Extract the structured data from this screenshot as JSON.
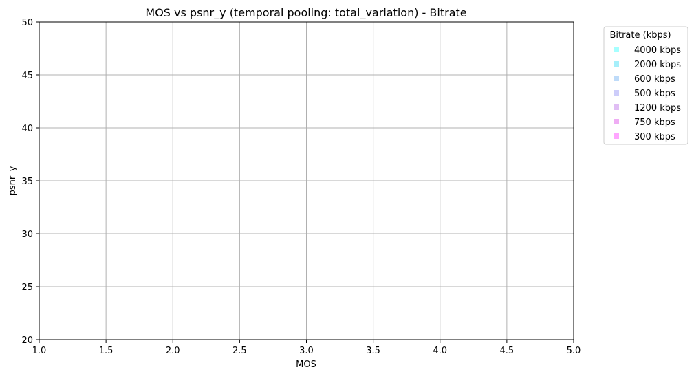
{
  "chart_data": {
    "type": "scatter",
    "title": "MOS vs psnr_y (temporal pooling: total_variation) - Bitrate",
    "xlabel": "MOS",
    "ylabel": "psnr_y",
    "xlim": [
      1.0,
      5.0
    ],
    "ylim": [
      20,
      50
    ],
    "xticks": [
      1.0,
      1.5,
      2.0,
      2.5,
      3.0,
      3.5,
      4.0,
      4.5,
      5.0
    ],
    "xtick_labels": [
      "1.0",
      "1.5",
      "2.0",
      "2.5",
      "3.0",
      "3.5",
      "4.0",
      "4.5",
      "5.0"
    ],
    "yticks": [
      20,
      25,
      30,
      35,
      40,
      45,
      50
    ],
    "ytick_labels": [
      "20",
      "25",
      "30",
      "35",
      "40",
      "45",
      "50"
    ],
    "grid": true,
    "legend": {
      "title": "Bitrate (kbps)",
      "placement": "outside-top-right",
      "marker": "square"
    },
    "series": [
      {
        "name": "4000 kbps",
        "color": "#80ffff",
        "points": []
      },
      {
        "name": "2000 kbps",
        "color": "#80e8f8",
        "points": []
      },
      {
        "name": "600 kbps",
        "color": "#a3ccf6",
        "points": []
      },
      {
        "name": "500 kbps",
        "color": "#b8b8f8",
        "points": []
      },
      {
        "name": "1200 kbps",
        "color": "#d3a3f0",
        "points": []
      },
      {
        "name": "750 kbps",
        "color": "#e88af0",
        "points": []
      },
      {
        "name": "300 kbps",
        "color": "#ff80ff",
        "points": []
      }
    ]
  }
}
